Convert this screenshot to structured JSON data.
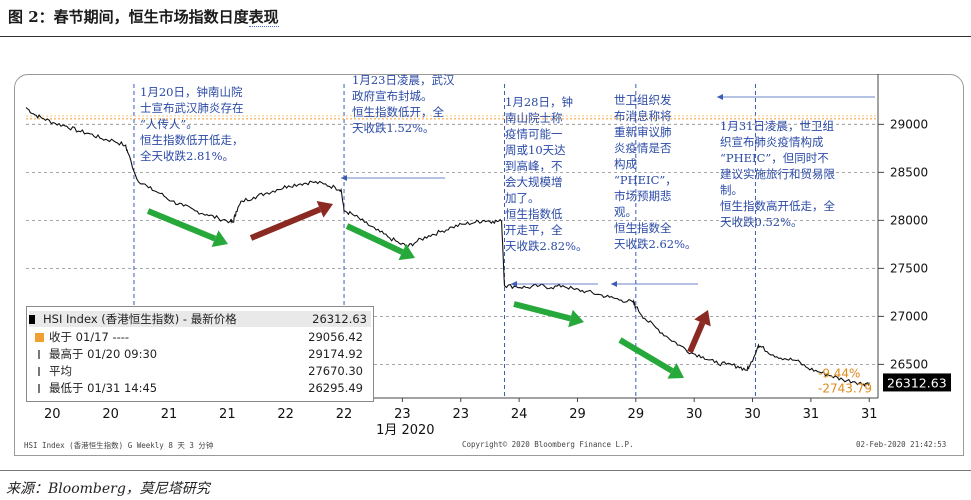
{
  "figure": {
    "title_prefix": "图 2：春节期间，恒生市场指数日度",
    "title_highlight": "表现",
    "source": "来源：Bloomberg，莫尼塔研究"
  },
  "footer": {
    "left": "HSI Index (香港恒生指数) G Weekly 8 天 3 分钟",
    "center": "Copyright© 2020 Bloomberg Finance L.P.",
    "right": "02-Feb-2020 21:42:53"
  },
  "annotations": [
    {
      "text": "1月20日，钟南山院\n士宣布武汉肺炎存在\n“人传人”。\n恒生指数低开低走，\n全天收跌2.81%。"
    },
    {
      "text": "1月23日凌晨，武汉\n政府宣布封城。\n恒生指数低开，全\n天收跌1.52%。"
    },
    {
      "text": "1月28日，钟\n南山院士称\n疫情可能一\n周或10天达\n到高峰，不\n会大规模增\n加了。\n恒生指数低\n开走平，全\n天收跌2.82%。"
    },
    {
      "text": "世卫组织发\n布消息称将\n重新审议肺\n炎疫情是否\n构成\n“PHEIC”，\n市场预期悲\n观。\n恒生指数全\n天收跌2.62%。"
    },
    {
      "text": "1月31日凌晨，世卫组\n织宣布肺炎疫情构成\n“PHEIC”，但同时不\n建议实施旅行和贸易限\n制。\n恒生指数高开低走，全\n天收跌0.52%。"
    }
  ],
  "legend": {
    "rows": [
      {
        "label": "HSI Index (香港恒生指数) - 最新价格",
        "value": "26312.63",
        "color": "#000000"
      },
      {
        "label": "收于 01/17 ----",
        "value": "29056.42",
        "color": "#f0a030"
      },
      {
        "label": "最高于 01/20 09:30",
        "value": "29174.92",
        "color": "#888888"
      },
      {
        "label": "平均",
        "value": "27670.30",
        "color": "#888888"
      },
      {
        "label": "最低于 01/31 14:45",
        "value": "26295.49",
        "color": "#888888"
      }
    ]
  },
  "right_labels": {
    "change_pct": "-9.44%",
    "change_abs": "-2743.79",
    "last_price": "26312.63",
    "color_pct": "#e08a1a",
    "color_last_bg": "#000000"
  },
  "chart_data": {
    "type": "line",
    "title": "",
    "xlabel": "1月 2020",
    "ylabel": "",
    "x_tick_labels": [
      "20",
      "20",
      "21",
      "21",
      "22",
      "22",
      "23",
      "23",
      "24",
      "29",
      "29",
      "30",
      "30",
      "31",
      "31"
    ],
    "y_ticks": [
      26500,
      27000,
      27500,
      28000,
      28500,
      29000
    ],
    "ylim": [
      26150,
      29420
    ],
    "reference_line": {
      "name": "收于 01/17",
      "value": 29056.42
    },
    "series": [
      {
        "name": "HSI Index (香港恒生指数) - 最新价格",
        "points": [
          [
            0.0,
            29175
          ],
          [
            0.15,
            29100
          ],
          [
            0.3,
            29060
          ],
          [
            0.5,
            29010
          ],
          [
            0.7,
            28980
          ],
          [
            0.9,
            28930
          ],
          [
            1.1,
            28900
          ],
          [
            1.3,
            28850
          ],
          [
            1.5,
            28830
          ],
          [
            1.7,
            28780
          ],
          [
            1.75,
            28700
          ],
          [
            1.9,
            28430
          ],
          [
            2.1,
            28340
          ],
          [
            2.3,
            28280
          ],
          [
            2.5,
            28200
          ],
          [
            2.7,
            28150
          ],
          [
            2.9,
            28100
          ],
          [
            3.1,
            28060
          ],
          [
            3.3,
            28020
          ],
          [
            3.5,
            27990
          ],
          [
            3.55,
            27980
          ],
          [
            3.6,
            28090
          ],
          [
            3.7,
            28200
          ],
          [
            3.9,
            28240
          ],
          [
            4.1,
            28280
          ],
          [
            4.3,
            28320
          ],
          [
            4.5,
            28360
          ],
          [
            4.7,
            28380
          ],
          [
            4.9,
            28400
          ],
          [
            5.1,
            28380
          ],
          [
            5.3,
            28340
          ],
          [
            5.4,
            28320
          ],
          [
            5.45,
            28100
          ],
          [
            5.6,
            28060
          ],
          [
            5.8,
            27980
          ],
          [
            6.0,
            27900
          ],
          [
            6.2,
            27830
          ],
          [
            6.4,
            27760
          ],
          [
            6.55,
            27730
          ],
          [
            6.7,
            27780
          ],
          [
            6.9,
            27840
          ],
          [
            7.1,
            27880
          ],
          [
            7.3,
            27930
          ],
          [
            7.5,
            27960
          ],
          [
            7.7,
            27980
          ],
          [
            7.85,
            28000
          ],
          [
            8.0,
            27990
          ],
          [
            8.15,
            27990
          ],
          [
            8.2,
            27320
          ],
          [
            8.4,
            27310
          ],
          [
            8.6,
            27300
          ],
          [
            8.8,
            27320
          ],
          [
            9.0,
            27300
          ],
          [
            9.2,
            27320
          ],
          [
            9.4,
            27280
          ],
          [
            9.6,
            27260
          ],
          [
            9.8,
            27230
          ],
          [
            10.0,
            27200
          ],
          [
            10.2,
            27170
          ],
          [
            10.4,
            27150
          ],
          [
            10.45,
            27100
          ],
          [
            10.6,
            26980
          ],
          [
            10.8,
            26880
          ],
          [
            11.0,
            26780
          ],
          [
            11.2,
            26700
          ],
          [
            11.4,
            26620
          ],
          [
            11.6,
            26580
          ],
          [
            11.8,
            26520
          ],
          [
            12.0,
            26500
          ],
          [
            12.2,
            26480
          ],
          [
            12.35,
            26440
          ],
          [
            12.4,
            26480
          ],
          [
            12.55,
            26700
          ],
          [
            12.6,
            26680
          ],
          [
            12.8,
            26600
          ],
          [
            13.0,
            26560
          ],
          [
            13.2,
            26540
          ],
          [
            13.4,
            26460
          ],
          [
            13.6,
            26420
          ],
          [
            13.8,
            26380
          ],
          [
            14.0,
            26340
          ],
          [
            14.2,
            26320
          ],
          [
            14.35,
            26295
          ],
          [
            14.45,
            26312
          ]
        ]
      }
    ]
  }
}
